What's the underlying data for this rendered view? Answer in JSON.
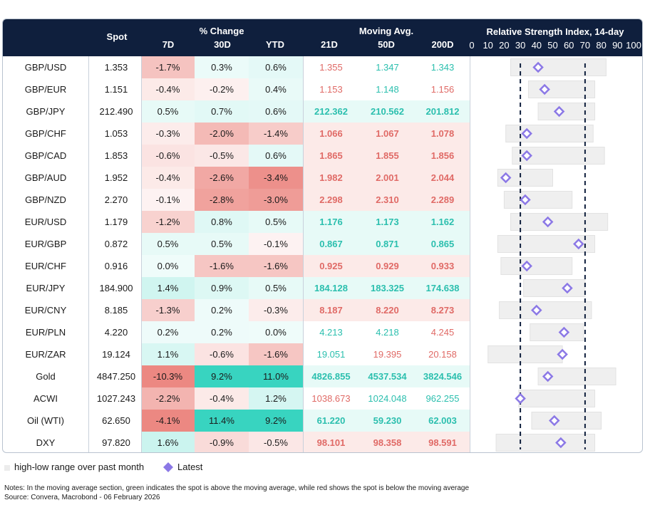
{
  "header": {
    "spot": "Spot",
    "pct_change": "% Change",
    "d7": "7D",
    "d30": "30D",
    "ytd": "YTD",
    "moving_avg": "Moving Avg.",
    "ma21": "21D",
    "ma50": "50D",
    "ma200": "200D",
    "rsi_title": "Relative Strength Index, 14-day"
  },
  "colors": {
    "header_bg": "#0f1f3d",
    "green_text": "#2bbfae",
    "red_text": "#e06a66",
    "rsi_marker": "#8b78e6",
    "rsi_range": "#efefef"
  },
  "chart_data": {
    "type": "table",
    "rsi_axis": {
      "min": 0,
      "max": 100,
      "ticks": [
        "0",
        "10",
        "20",
        "30",
        "40",
        "50",
        "60",
        "70",
        "80",
        "90",
        "100"
      ],
      "reference_lines": [
        30,
        70
      ]
    },
    "rows": [
      {
        "name": "GBP/USD",
        "spot": "1.353",
        "d7": "-1.7%",
        "d30": "0.3%",
        "ytd": "0.6%",
        "ma21": "1.355",
        "ma50": "1.347",
        "ma200": "1.343",
        "rsi_low": 24,
        "rsi_high": 83,
        "rsi": 41
      },
      {
        "name": "GBP/EUR",
        "spot": "1.151",
        "d7": "-0.4%",
        "d30": "-0.2%",
        "ytd": "0.4%",
        "ma21": "1.153",
        "ma50": "1.148",
        "ma200": "1.156",
        "rsi_low": 35,
        "rsi_high": 76,
        "rsi": 45
      },
      {
        "name": "GBP/JPY",
        "spot": "212.490",
        "d7": "0.5%",
        "d30": "0.7%",
        "ytd": "0.6%",
        "ma21": "212.362",
        "ma50": "210.562",
        "ma200": "201.812",
        "rsi_low": 41,
        "rsi_high": 76,
        "rsi": 54
      },
      {
        "name": "GBP/CHF",
        "spot": "1.053",
        "d7": "-0.3%",
        "d30": "-2.0%",
        "ytd": "-1.4%",
        "ma21": "1.066",
        "ma50": "1.067",
        "ma200": "1.078",
        "rsi_low": 21,
        "rsi_high": 75,
        "rsi": 34
      },
      {
        "name": "GBP/CAD",
        "spot": "1.853",
        "d7": "-0.6%",
        "d30": "-0.5%",
        "ytd": "0.6%",
        "ma21": "1.865",
        "ma50": "1.855",
        "ma200": "1.856",
        "rsi_low": 25,
        "rsi_high": 82,
        "rsi": 34
      },
      {
        "name": "GBP/AUD",
        "spot": "1.952",
        "d7": "-0.4%",
        "d30": "-2.6%",
        "ytd": "-3.4%",
        "ma21": "1.982",
        "ma50": "2.001",
        "ma200": "2.044",
        "rsi_low": 16,
        "rsi_high": 50,
        "rsi": 21
      },
      {
        "name": "GBP/NZD",
        "spot": "2.270",
        "d7": "-0.1%",
        "d30": "-2.8%",
        "ytd": "-3.0%",
        "ma21": "2.298",
        "ma50": "2.310",
        "ma200": "2.289",
        "rsi_low": 20,
        "rsi_high": 62,
        "rsi": 33
      },
      {
        "name": "EUR/USD",
        "spot": "1.179",
        "d7": "-1.2%",
        "d30": "0.8%",
        "ytd": "0.5%",
        "ma21": "1.176",
        "ma50": "1.173",
        "ma200": "1.162",
        "rsi_low": 24,
        "rsi_high": 84,
        "rsi": 47
      },
      {
        "name": "EUR/GBP",
        "spot": "0.872",
        "d7": "0.5%",
        "d30": "0.5%",
        "ytd": "-0.1%",
        "ma21": "0.867",
        "ma50": "0.871",
        "ma200": "0.865",
        "rsi_low": 16,
        "rsi_high": 76,
        "rsi": 66
      },
      {
        "name": "EUR/CHF",
        "spot": "0.916",
        "d7": "0.0%",
        "d30": "-1.6%",
        "ytd": "-1.6%",
        "ma21": "0.925",
        "ma50": "0.929",
        "ma200": "0.933",
        "rsi_low": 18,
        "rsi_high": 62,
        "rsi": 34
      },
      {
        "name": "EUR/JPY",
        "spot": "184.900",
        "d7": "1.4%",
        "d30": "0.9%",
        "ytd": "0.5%",
        "ma21": "184.128",
        "ma50": "183.325",
        "ma200": "174.638",
        "rsi_low": 32,
        "rsi_high": 70,
        "rsi": 59
      },
      {
        "name": "EUR/CNY",
        "spot": "8.185",
        "d7": "-1.3%",
        "d30": "0.2%",
        "ytd": "-0.3%",
        "ma21": "8.187",
        "ma50": "8.220",
        "ma200": "8.273",
        "rsi_low": 17,
        "rsi_high": 74,
        "rsi": 40
      },
      {
        "name": "EUR/PLN",
        "spot": "4.220",
        "d7": "0.2%",
        "d30": "0.2%",
        "ytd": "0.0%",
        "ma21": "4.213",
        "ma50": "4.218",
        "ma200": "4.245",
        "rsi_low": 36,
        "rsi_high": 69,
        "rsi": 57
      },
      {
        "name": "EUR/ZAR",
        "spot": "19.124",
        "d7": "1.1%",
        "d30": "-0.6%",
        "ytd": "-1.6%",
        "ma21": "19.051",
        "ma50": "19.395",
        "ma200": "20.158",
        "rsi_low": 10,
        "rsi_high": 56,
        "rsi": 56
      },
      {
        "name": "Gold",
        "spot": "4847.250",
        "d7": "-10.3%",
        "d30": "9.2%",
        "ytd": "11.0%",
        "ma21": "4826.855",
        "ma50": "4537.534",
        "ma200": "3824.546",
        "rsi_low": 41,
        "rsi_high": 89,
        "rsi": 47
      },
      {
        "name": "ACWI",
        "spot": "1027.243",
        "d7": "-2.2%",
        "d30": "-0.4%",
        "ytd": "1.2%",
        "ma21": "1038.673",
        "ma50": "1024.048",
        "ma200": "962.255",
        "rsi_low": 29,
        "rsi_high": 76,
        "rsi": 30
      },
      {
        "name": "Oil (WTI)",
        "spot": "62.650",
        "d7": "-4.1%",
        "d30": "11.4%",
        "ytd": "9.2%",
        "ma21": "61.220",
        "ma50": "59.230",
        "ma200": "62.003",
        "rsi_low": 37,
        "rsi_high": 80,
        "rsi": 51
      },
      {
        "name": "DXY",
        "spot": "97.820",
        "d7": "1.6%",
        "d30": "-0.9%",
        "ytd": "-0.5%",
        "ma21": "98.101",
        "ma50": "98.358",
        "ma200": "98.591",
        "rsi_low": 15,
        "rsi_high": 76,
        "rsi": 55
      }
    ]
  },
  "legend": {
    "range_label": "high-low range over past month",
    "latest_label": "Latest"
  },
  "notes": {
    "line1": "Notes: In the moving average section, green indicates the spot is above the moving average, while red shows the spot is below the moving average",
    "line2": "Source: Convera, Macrobond - 06 February 2026"
  }
}
